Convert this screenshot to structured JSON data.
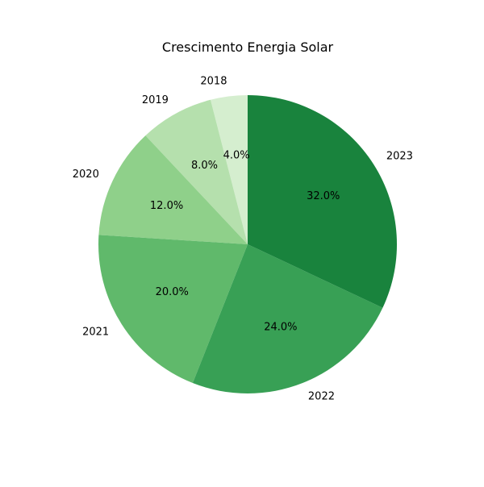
{
  "chart_data": {
    "type": "pie",
    "title": "Crescimento Energia Solar",
    "categories": [
      "2018",
      "2019",
      "2020",
      "2021",
      "2022",
      "2023"
    ],
    "values": [
      4.0,
      8.0,
      12.0,
      20.0,
      24.0,
      32.0
    ],
    "percent_labels": [
      "4.0%",
      "8.0%",
      "12.0%",
      "20.0%",
      "24.0%",
      "32.0%"
    ],
    "colors": [
      "#d5eecf",
      "#b5e0ad",
      "#8fd08a",
      "#60b96b",
      "#38a055",
      "#19833d"
    ],
    "start_angle_deg": 90,
    "direction": "counterclockwise",
    "legend": "none",
    "grid": false
  }
}
